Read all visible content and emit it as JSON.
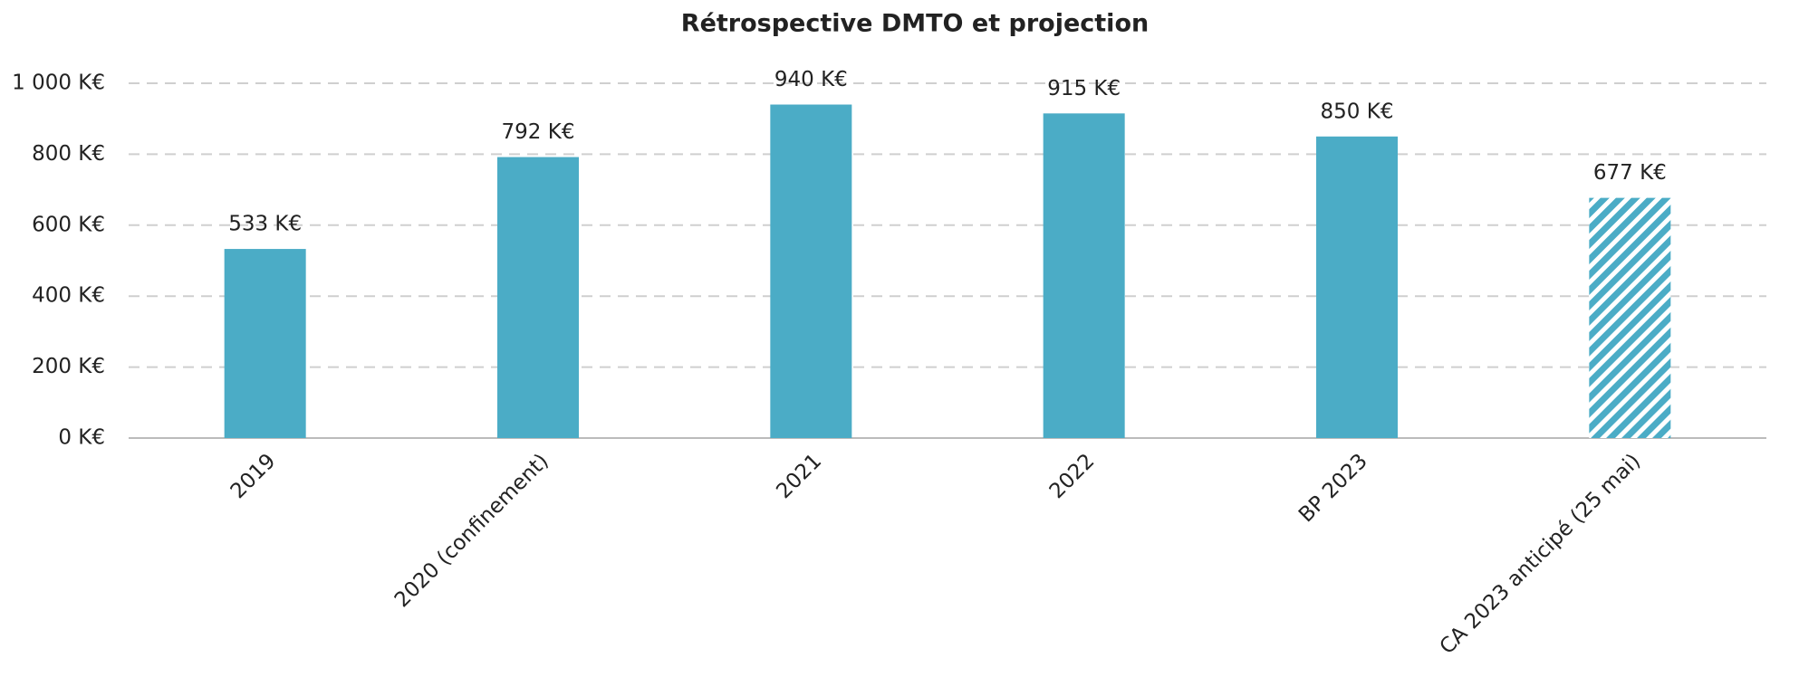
{
  "chart_data": {
    "type": "bar",
    "title": "Rétrospective DMTO et projection",
    "categories": [
      "2019",
      "2020 (confinement)",
      "2021",
      "2022",
      "BP 2023",
      "CA 2023 anticipé (25 mai)"
    ],
    "values": [
      533,
      792,
      940,
      915,
      850,
      677
    ],
    "value_labels": [
      "533 K€",
      "792 K€",
      "940 K€",
      "915 K€",
      "850 K€",
      "677 K€"
    ],
    "hatched": [
      false,
      false,
      false,
      false,
      false,
      true
    ],
    "color": "#4bacc6",
    "ylim": [
      0,
      1000
    ],
    "yticks": [
      {
        "value": 0,
        "label": "0 K€"
      },
      {
        "value": 200,
        "label": "200 K€"
      },
      {
        "value": 400,
        "label": "400 K€"
      },
      {
        "value": 600,
        "label": "600 K€"
      },
      {
        "value": 800,
        "label": "800 K€"
      },
      {
        "value": 1000,
        "label": "1 000 K€"
      }
    ],
    "grid": true
  }
}
